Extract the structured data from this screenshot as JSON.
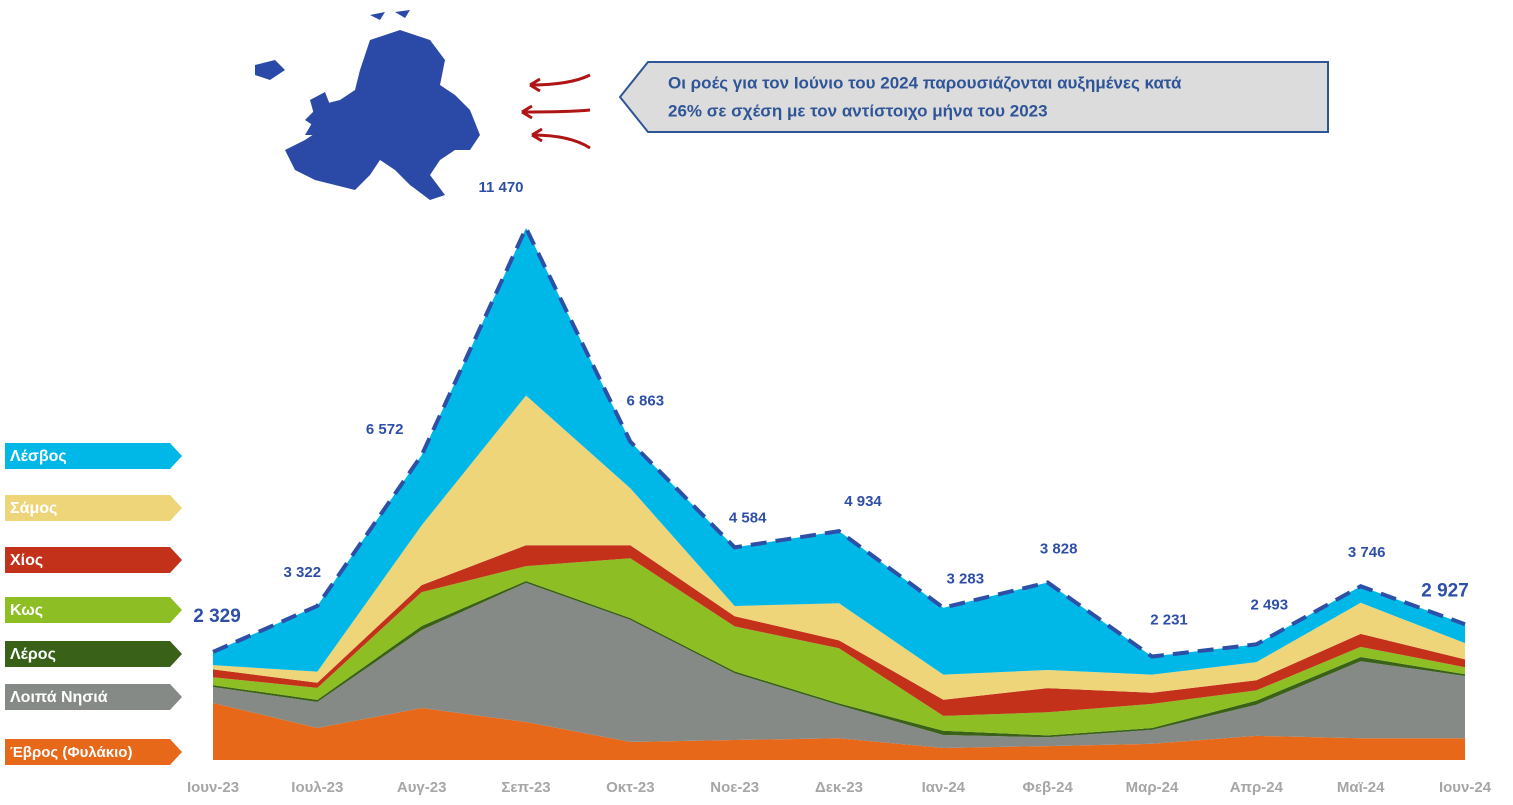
{
  "chart_data": {
    "type": "stacked-area",
    "annotation": [
      "Οι ροές για τον Ιούνιο του 2024 παρουσιάζονται αυξημένες κατά",
      "26% σε σχέση με τον αντίστοιχο μήνα του 2023"
    ],
    "categories": [
      "Ιουν-23",
      "Ιουλ-23",
      "Αυγ-23",
      "Σεπ-23",
      "Οκτ-23",
      "Νοε-23",
      "Δεκ-23",
      "Ιαν-24",
      "Φεβ-24",
      "Μαρ-24",
      "Απρ-24",
      "Μαϊ-24",
      "Ιουν-24"
    ],
    "series": [
      {
        "name": "Έβρος (Φυλάκιο)",
        "color": "#e8681a",
        "values": [
          1230,
          690,
          1120,
          820,
          390,
          430,
          470,
          260,
          300,
          350,
          520,
          470,
          470
        ]
      },
      {
        "name": "Λοιπά Νησιά",
        "color": "#858a86",
        "values": [
          345,
          560,
          1680,
          3000,
          2630,
          1440,
          710,
          280,
          190,
          300,
          670,
          1660,
          1340
        ]
      },
      {
        "name": "Λέρος",
        "color": "#3a6118",
        "values": [
          40,
          45,
          90,
          40,
          40,
          40,
          40,
          90,
          40,
          40,
          90,
          90,
          40
        ]
      },
      {
        "name": "Κως",
        "color": "#8dbf25",
        "values": [
          170,
          260,
          730,
          320,
          1290,
          970,
          1190,
          320,
          500,
          520,
          220,
          220,
          150
        ]
      },
      {
        "name": "Χίος",
        "color": "#c3311b",
        "values": [
          170,
          110,
          150,
          450,
          280,
          220,
          170,
          350,
          520,
          240,
          220,
          280,
          170
        ]
      },
      {
        "name": "Σάμος",
        "color": "#eed57a",
        "values": [
          90,
          240,
          1290,
          3230,
          1230,
          220,
          800,
          540,
          390,
          390,
          390,
          670,
          350
        ]
      },
      {
        "name": "Λέσβος",
        "color": "#00b8e8",
        "values": [
          284,
          1417,
          1512,
          3610,
          1003,
          1264,
          1554,
          1443,
          1888,
          391,
          383,
          356,
          407
        ]
      }
    ],
    "totals": [
      2329,
      3322,
      6572,
      11470,
      6863,
      4584,
      4934,
      3283,
      3828,
      2231,
      2493,
      3746,
      2927
    ],
    "total_labels": [
      "2 329",
      "3 322",
      "6 572",
      "11 470",
      "6 863",
      "4 584",
      "4 934",
      "3 283",
      "3 828",
      "2 231",
      "2 493",
      "3 746",
      "2 927"
    ],
    "total_color": "#2e4fa8"
  }
}
